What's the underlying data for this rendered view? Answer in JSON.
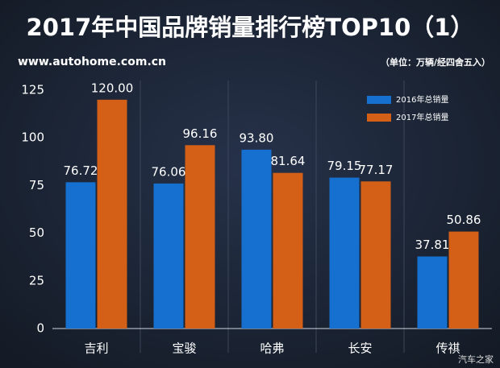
{
  "chart_data": {
    "type": "bar",
    "title": "2017年中国品牌销量排行榜TOP10（1）",
    "subtitle": "www.autohome.com.cn",
    "annotation": "（单位：万辆/经四舍五入）",
    "watermark": "汽车之家",
    "categories": [
      "吉利",
      "宝骏",
      "哈弗",
      "长安",
      "传祺"
    ],
    "series": [
      {
        "name": "2016年总销量",
        "color": "#1570d0",
        "values": [
          76.72,
          76.06,
          93.8,
          79.15,
          37.81
        ],
        "value_labels": [
          "76.72",
          "76.06",
          "93.80",
          "79.15",
          "37.81"
        ]
      },
      {
        "name": "2017年总销量",
        "color": "#d45f16",
        "values": [
          120,
          96.16,
          81.64,
          77.17,
          50.86
        ],
        "value_labels": [
          "120.00",
          "96.16",
          "81.64",
          "77.17",
          "50.86"
        ]
      }
    ],
    "ylim": [
      0,
      125
    ],
    "yticks": [
      0,
      25,
      50,
      75,
      100,
      125
    ],
    "legend": "upper right"
  }
}
